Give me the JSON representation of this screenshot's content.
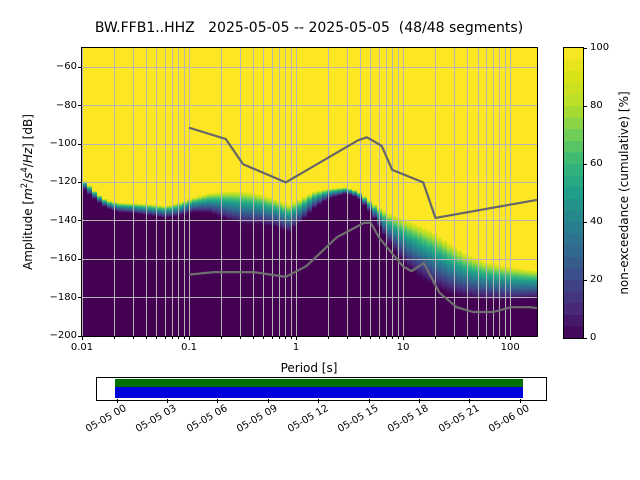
{
  "figure_title": "BW.FFB1..HHZ   2025-05-05 -- 2025-05-05  (48/48 segments)",
  "chart_data": {
    "type": "heatmap",
    "subtype": "ppsd-cumulative-spectrogram",
    "title": "BW.FFB1..HHZ   2025-05-05 -- 2025-05-05  (48/48 segments)",
    "xlabel": "Period [s]",
    "ylabel": "Amplitude [m²/s⁴/Hz] [dB]",
    "ylabel_parts": [
      {
        "t": "Amplitude ["
      },
      {
        "t": "m",
        "i": 1
      },
      {
        "t": "2",
        "sup": 1
      },
      {
        "t": "/"
      },
      {
        "t": "s",
        "i": 1
      },
      {
        "t": "4",
        "sup": 1
      },
      {
        "t": "/"
      },
      {
        "t": "Hz",
        "i": 1
      },
      {
        "t": "] [dB]"
      }
    ],
    "x_axis": {
      "scale": "log",
      "min": 0.01,
      "max": 178,
      "major_ticks": [
        {
          "value": 0.01,
          "label": "0.01"
        },
        {
          "value": 0.1,
          "label": "0.1"
        },
        {
          "value": 1,
          "label": "1"
        },
        {
          "value": 10,
          "label": "10"
        },
        {
          "value": 100,
          "label": "100"
        }
      ],
      "minor_tick_decades": [
        0.01,
        0.1,
        1,
        10
      ],
      "grid": true
    },
    "y_axis": {
      "min": -200,
      "max": -50,
      "ticks": [
        {
          "value": -60,
          "label": "−60"
        },
        {
          "value": -80,
          "label": "−80"
        },
        {
          "value": -100,
          "label": "−100"
        },
        {
          "value": -120,
          "label": "−120"
        },
        {
          "value": -140,
          "label": "−140"
        },
        {
          "value": -160,
          "label": "−160"
        },
        {
          "value": -180,
          "label": "−180"
        },
        {
          "value": -200,
          "label": "−200"
        }
      ],
      "grid": true
    },
    "colormap": {
      "name": "viridis",
      "stops": [
        "#440154",
        "#482878",
        "#3e4989",
        "#31688e",
        "#26828e",
        "#1f9e89",
        "#35b779",
        "#6ece58",
        "#b5de2b",
        "#d8e219",
        "#fde725"
      ],
      "background_0pct": "#440154",
      "top_100pct": "#fde725"
    },
    "colorbar": {
      "label": "non-exceedance (cumulative) [%]",
      "ticks": [
        {
          "value": 0,
          "label": "0"
        },
        {
          "value": 20,
          "label": "20"
        },
        {
          "value": 40,
          "label": "40"
        },
        {
          "value": 60,
          "label": "60"
        },
        {
          "value": 80,
          "label": "80"
        },
        {
          "value": 100,
          "label": "100"
        }
      ],
      "levels": 25
    },
    "cumulative_field": {
      "description": "Per-period dB levels where non-exceedance reaches 0% (db_0) and 100% (db_100); viridis transition between them, skewed toward light colors at top.",
      "skew_exponent": 1.35,
      "columns": 91,
      "control_points": [
        {
          "period": 0.01,
          "db_0": -122.5,
          "db_100": -118.0
        },
        {
          "period": 0.0115,
          "db_0": -126.0,
          "db_100": -121.0
        },
        {
          "period": 0.014,
          "db_0": -130.0,
          "db_100": -126.0
        },
        {
          "period": 0.017,
          "db_0": -133.5,
          "db_100": -129.3
        },
        {
          "period": 0.022,
          "db_0": -135.5,
          "db_100": -130.6
        },
        {
          "period": 0.03,
          "db_0": -136.0,
          "db_100": -130.9
        },
        {
          "period": 0.045,
          "db_0": -137.5,
          "db_100": -131.4
        },
        {
          "period": 0.06,
          "db_0": -138.5,
          "db_100": -132.3
        },
        {
          "period": 0.08,
          "db_0": -137.5,
          "db_100": -130.6
        },
        {
          "period": 0.11,
          "db_0": -135.5,
          "db_100": -127.9
        },
        {
          "period": 0.16,
          "db_0": -136.0,
          "db_100": -125.5
        },
        {
          "period": 0.23,
          "db_0": -139.5,
          "db_100": -124.5
        },
        {
          "period": 0.32,
          "db_0": -142.0,
          "db_100": -124.5
        },
        {
          "period": 0.45,
          "db_0": -142.0,
          "db_100": -126.0
        },
        {
          "period": 0.62,
          "db_0": -143.0,
          "db_100": -128.5
        },
        {
          "period": 0.86,
          "db_0": -146.0,
          "db_100": -131.5
        },
        {
          "period": 1.1,
          "db_0": -141.0,
          "db_100": -128.5
        },
        {
          "period": 1.45,
          "db_0": -134.0,
          "db_100": -124.8
        },
        {
          "period": 2.0,
          "db_0": -128.5,
          "db_100": -123.3
        },
        {
          "period": 2.9,
          "db_0": -126.0,
          "db_100": -122.6
        },
        {
          "period": 3.8,
          "db_0": -128.0,
          "db_100": -124.5
        },
        {
          "period": 5.0,
          "db_0": -136.0,
          "db_100": -130.0
        },
        {
          "period": 6.1,
          "db_0": -144.0,
          "db_100": -133.5
        },
        {
          "period": 7.6,
          "db_0": -153.0,
          "db_100": -136.5
        },
        {
          "period": 9.5,
          "db_0": -160.5,
          "db_100": -138.5
        },
        {
          "period": 12.0,
          "db_0": -166.0,
          "db_100": -140.5
        },
        {
          "period": 15.0,
          "db_0": -170.0,
          "db_100": -143.0
        },
        {
          "period": 19.0,
          "db_0": -174.0,
          "db_100": -145.5
        },
        {
          "period": 27.0,
          "db_0": -178.0,
          "db_100": -151.5
        },
        {
          "period": 38.0,
          "db_0": -180.0,
          "db_100": -157.0
        },
        {
          "period": 55.0,
          "db_0": -181.0,
          "db_100": -161.0
        },
        {
          "period": 80.0,
          "db_0": -181.5,
          "db_100": -163.0
        },
        {
          "period": 115.0,
          "db_0": -181.5,
          "db_100": -164.5
        },
        {
          "period": 178.0,
          "db_0": -180.5,
          "db_100": -166.0
        }
      ]
    },
    "noise_models": {
      "color_high": "#666666",
      "color_low": "#6f6f6f",
      "nhnm": [
        [
          0.1,
          -91.5
        ],
        [
          0.22,
          -97.4
        ],
        [
          0.32,
          -110.5
        ],
        [
          0.8,
          -120.0
        ],
        [
          3.8,
          -98.0
        ],
        [
          4.6,
          -96.5
        ],
        [
          6.3,
          -101.0
        ],
        [
          7.9,
          -113.5
        ],
        [
          15.4,
          -120.0
        ],
        [
          20.0,
          -138.5
        ],
        [
          178.0,
          -129.1
        ]
      ],
      "nlnm": [
        [
          0.1,
          -168.0
        ],
        [
          0.17,
          -166.7
        ],
        [
          0.4,
          -166.7
        ],
        [
          0.8,
          -169.2
        ],
        [
          1.24,
          -163.7
        ],
        [
          2.4,
          -148.6
        ],
        [
          4.3,
          -141.1
        ],
        [
          5.0,
          -141.1
        ],
        [
          6.0,
          -149.0
        ],
        [
          10.0,
          -163.8
        ],
        [
          12.0,
          -166.2
        ],
        [
          15.6,
          -162.1
        ],
        [
          21.9,
          -177.5
        ],
        [
          31.6,
          -185.0
        ],
        [
          45.0,
          -187.5
        ],
        [
          70.0,
          -187.5
        ],
        [
          101.0,
          -185.0
        ],
        [
          154.0,
          -185.0
        ],
        [
          178.0,
          -185.5
        ]
      ]
    },
    "timeline": {
      "tick_labels": [
        "05-05 00",
        "05-05 03",
        "05-05 06",
        "05-05 09",
        "05-05 12",
        "05-05 15",
        "05-05 18",
        "05-05 21",
        "05-06 00"
      ],
      "bar_top_color": "#007000",
      "bar_bottom_color": "#0000dd"
    }
  }
}
